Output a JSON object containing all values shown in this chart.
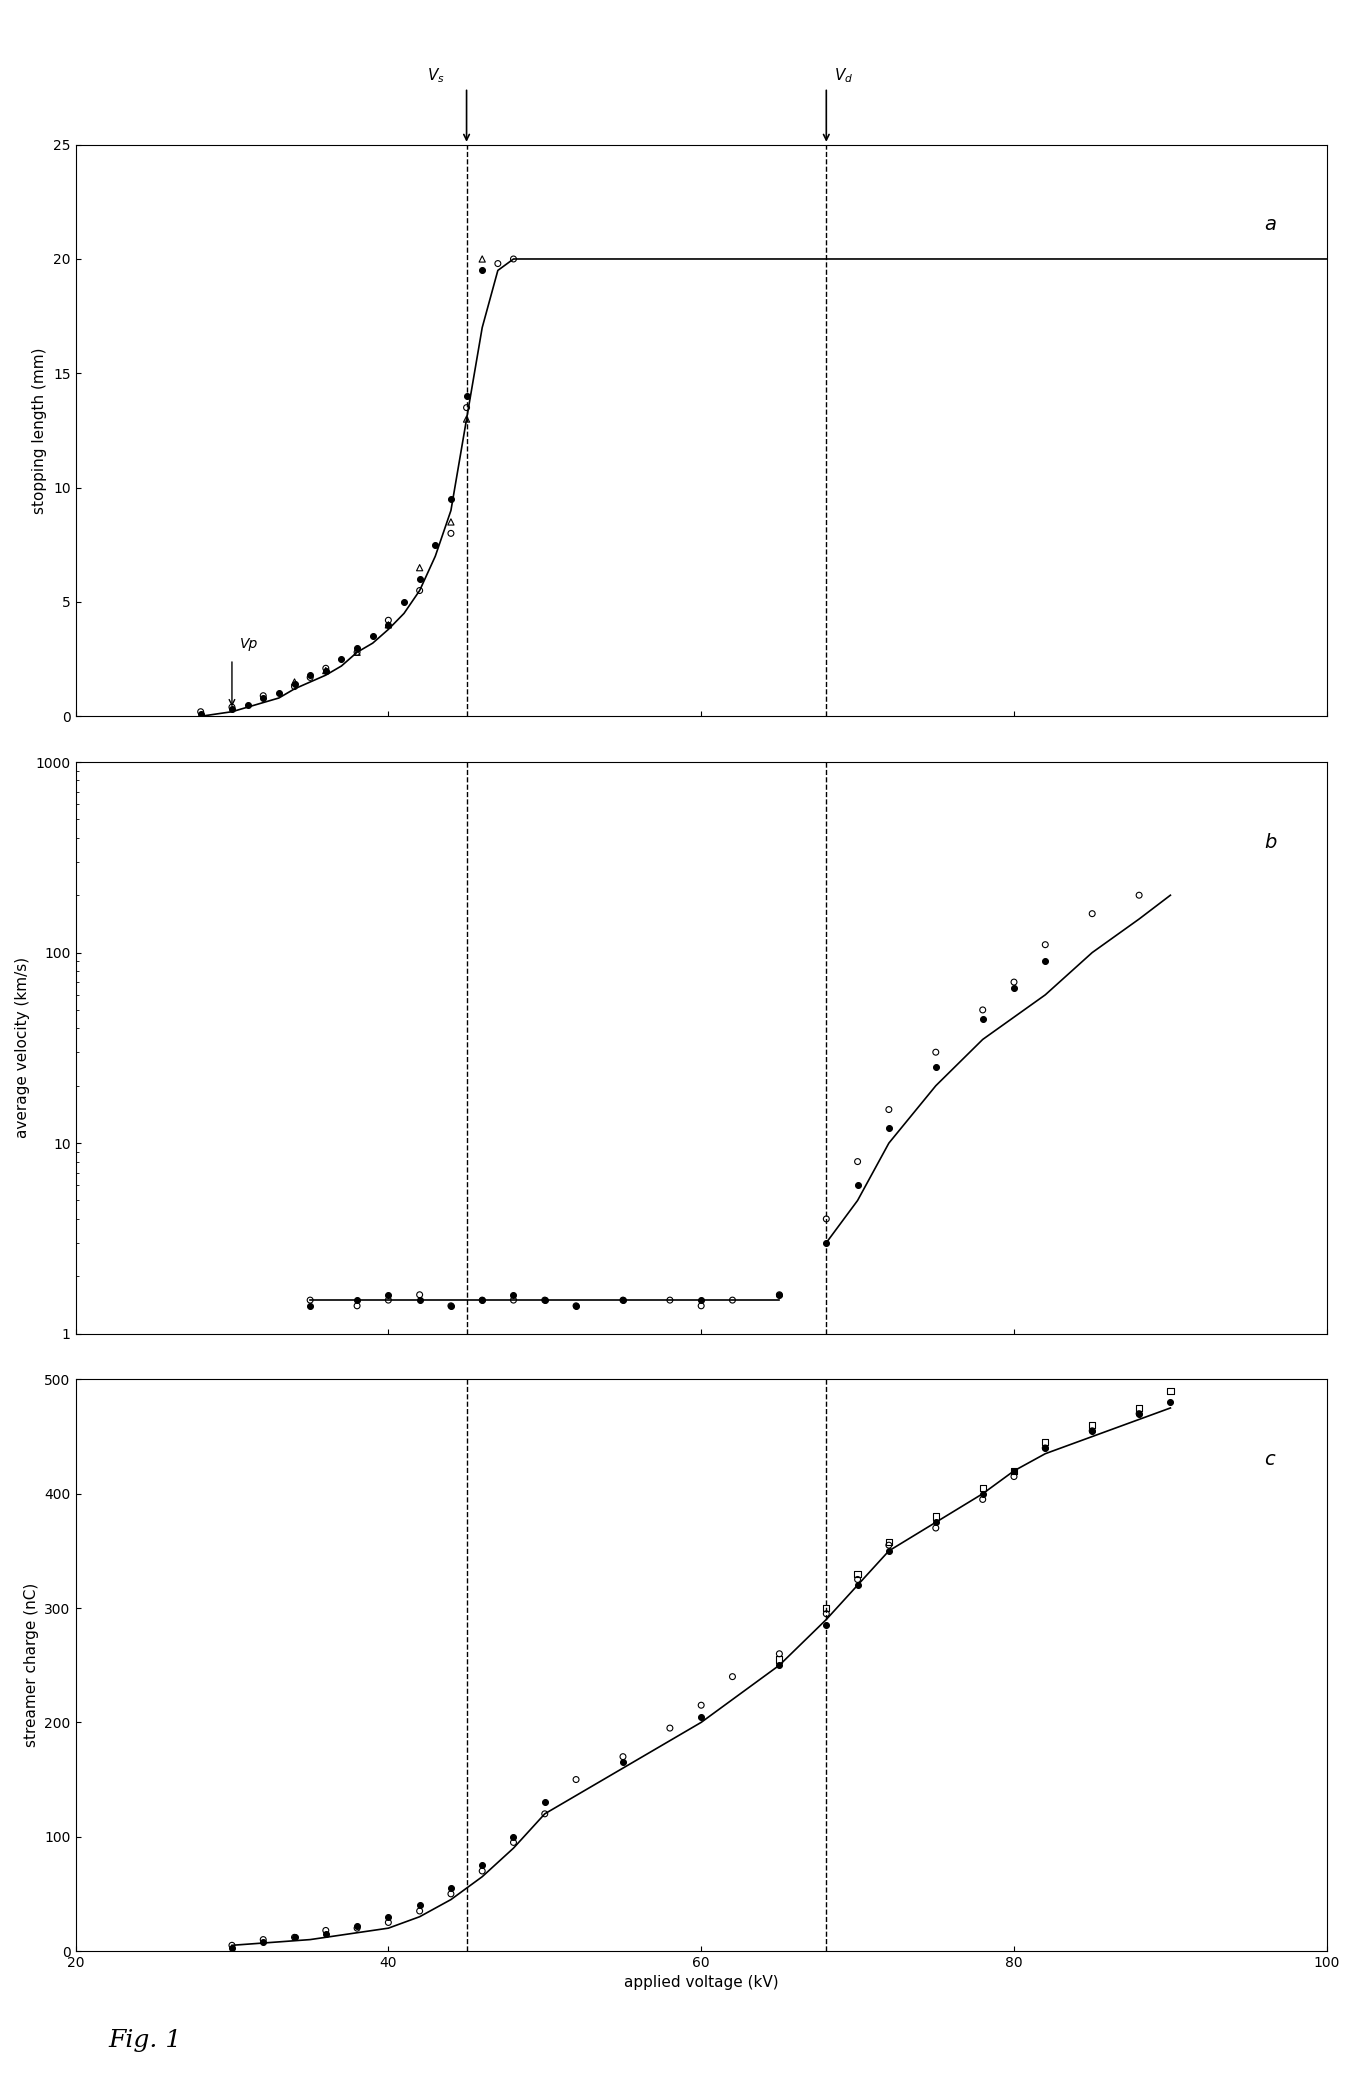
{
  "xlim": [
    20,
    100
  ],
  "xticks": [
    20,
    40,
    60,
    80,
    100
  ],
  "xlabel": "applied voltage (kV)",
  "fig_label": "Fig. 1",
  "panel_a": {
    "ylabel": "stopping length (mm)",
    "ylim": [
      0,
      25
    ],
    "yticks": [
      0,
      5,
      10,
      15,
      20,
      25
    ],
    "label": "a",
    "Vs": 45,
    "Vd": 68,
    "Vp_x": 30,
    "Vp_label": "Vp",
    "curve_x": [
      28,
      30,
      31,
      32,
      33,
      34,
      35,
      36,
      37,
      38,
      39,
      40,
      41,
      42,
      43,
      44,
      45,
      46,
      47,
      48,
      50,
      52,
      55,
      60,
      65,
      70,
      80,
      90,
      100
    ],
    "curve_y": [
      0.0,
      0.2,
      0.4,
      0.6,
      0.8,
      1.2,
      1.5,
      1.8,
      2.2,
      2.8,
      3.2,
      3.8,
      4.5,
      5.5,
      7.0,
      9.0,
      13.0,
      17.0,
      19.5,
      20.0,
      20.0,
      20.0,
      20.0,
      20.0,
      20.0,
      20.0,
      20.0,
      20.0,
      20.0
    ],
    "scatter_filled_x": [
      28,
      30,
      31,
      32,
      33,
      34,
      35,
      36,
      37,
      38,
      39,
      40,
      41,
      42,
      43,
      44,
      45,
      46
    ],
    "scatter_filled_y": [
      0.1,
      0.3,
      0.5,
      0.8,
      1.0,
      1.4,
      1.8,
      2.0,
      2.5,
      3.0,
      3.5,
      4.0,
      5.0,
      6.0,
      7.5,
      9.5,
      14.0,
      19.5
    ],
    "scatter_open_x": [
      28,
      30,
      32,
      34,
      35,
      36,
      38,
      40,
      42,
      44,
      45,
      47,
      48
    ],
    "scatter_open_y": [
      0.2,
      0.4,
      0.9,
      1.3,
      1.7,
      2.1,
      2.8,
      4.2,
      5.5,
      8.0,
      13.5,
      19.8,
      20.0
    ],
    "scatter_triangle_x": [
      34,
      36,
      38,
      40,
      42,
      44,
      45,
      46
    ],
    "scatter_triangle_y": [
      1.5,
      2.0,
      2.8,
      4.0,
      6.5,
      8.5,
      13.0,
      20.0
    ]
  },
  "panel_b": {
    "ylabel": "average velocity (km/s)",
    "ylim_log": [
      1,
      1000
    ],
    "yticks_log": [
      1,
      10,
      100,
      1000
    ],
    "label": "b",
    "Vs": 45,
    "Vd": 68,
    "curve_low_x": [
      35,
      40,
      45,
      50,
      55,
      60,
      65
    ],
    "curve_low_y": [
      1.5,
      1.5,
      1.5,
      1.5,
      1.5,
      1.5,
      1.5
    ],
    "curve_high_x": [
      68,
      70,
      72,
      75,
      78,
      82,
      85,
      88,
      90
    ],
    "curve_high_y": [
      3.0,
      5.0,
      10.0,
      20.0,
      35.0,
      60.0,
      100.0,
      150.0,
      200.0
    ],
    "scatter_open_x": [
      35,
      38,
      40,
      42,
      44,
      46,
      48,
      50,
      52,
      55,
      58,
      60,
      62,
      65,
      68,
      70,
      72,
      75,
      78,
      80,
      82,
      85,
      88
    ],
    "scatter_open_y": [
      1.5,
      1.4,
      1.5,
      1.6,
      1.4,
      1.5,
      1.5,
      1.5,
      1.4,
      1.5,
      1.5,
      1.4,
      1.5,
      1.6,
      4.0,
      8.0,
      15.0,
      30.0,
      50.0,
      70.0,
      110.0,
      160.0,
      200.0
    ],
    "scatter_filled_x": [
      35,
      38,
      40,
      42,
      44,
      46,
      48,
      50,
      52,
      55,
      60,
      65,
      68,
      70,
      72,
      75,
      78,
      80,
      82
    ],
    "scatter_filled_y": [
      1.4,
      1.5,
      1.6,
      1.5,
      1.4,
      1.5,
      1.6,
      1.5,
      1.4,
      1.5,
      1.5,
      1.6,
      3.0,
      6.0,
      12.0,
      25.0,
      45.0,
      65.0,
      90.0
    ]
  },
  "panel_c": {
    "ylabel": "streamer charge (nC)",
    "ylim": [
      0,
      500
    ],
    "yticks": [
      0,
      100,
      200,
      300,
      400,
      500
    ],
    "label": "c",
    "Vs": 45,
    "Vd": 68,
    "curve_x": [
      30,
      35,
      40,
      42,
      44,
      46,
      48,
      50,
      55,
      60,
      65,
      68,
      70,
      72,
      75,
      78,
      80,
      82,
      85,
      88,
      90
    ],
    "curve_y": [
      5,
      10,
      20,
      30,
      45,
      65,
      90,
      120,
      160,
      200,
      250,
      290,
      320,
      350,
      375,
      400,
      420,
      435,
      450,
      465,
      475
    ],
    "scatter_open_x": [
      30,
      32,
      34,
      36,
      38,
      40,
      42,
      44,
      46,
      48,
      50,
      52,
      55,
      58,
      60,
      62,
      65,
      68,
      70,
      72,
      75,
      78,
      80,
      82,
      85,
      88
    ],
    "scatter_open_y": [
      5,
      10,
      12,
      18,
      20,
      25,
      35,
      50,
      70,
      95,
      120,
      150,
      170,
      195,
      215,
      240,
      260,
      295,
      325,
      355,
      370,
      395,
      415,
      440,
      455,
      470
    ],
    "scatter_filled_x": [
      30,
      32,
      34,
      36,
      38,
      40,
      42,
      44,
      46,
      48,
      50,
      55,
      60,
      65,
      68,
      70,
      72,
      75,
      78,
      80,
      82,
      85,
      88,
      90
    ],
    "scatter_filled_y": [
      3,
      8,
      12,
      15,
      22,
      30,
      40,
      55,
      75,
      100,
      130,
      165,
      205,
      250,
      285,
      320,
      350,
      375,
      400,
      420,
      440,
      455,
      470,
      480
    ],
    "scatter_square_x": [
      65,
      68,
      70,
      72,
      75,
      78,
      80,
      82,
      85,
      88,
      90
    ],
    "scatter_square_y": [
      255,
      300,
      330,
      358,
      380,
      405,
      420,
      445,
      460,
      475,
      490
    ]
  },
  "colors": {
    "line": "#000000",
    "dashed": "#000000",
    "filled": "#000000",
    "open": "#000000",
    "background": "#ffffff"
  }
}
